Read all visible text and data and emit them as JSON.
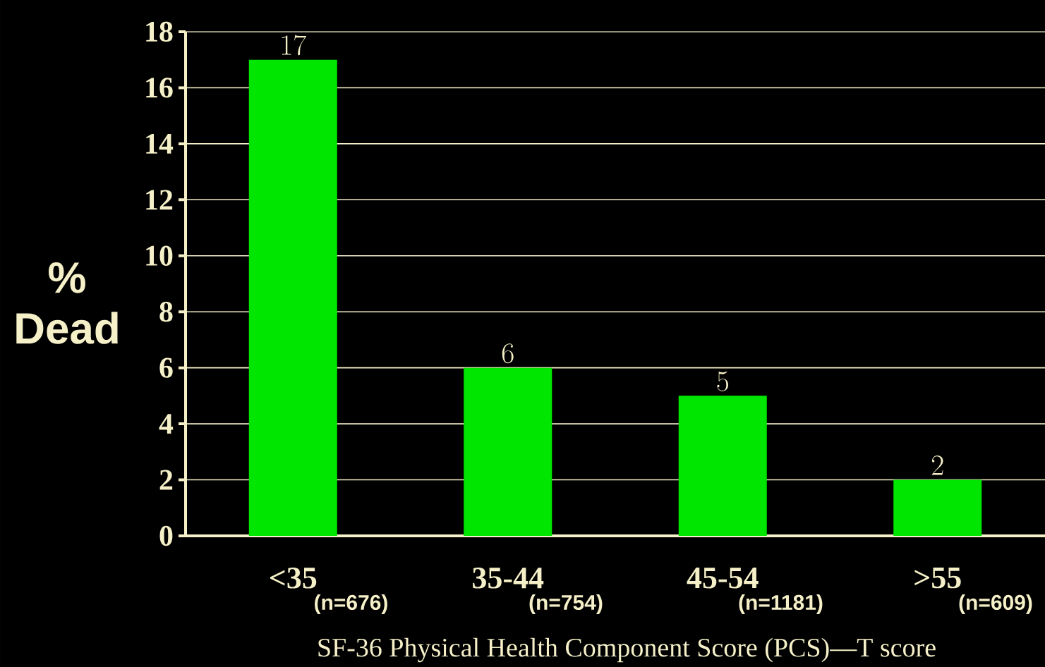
{
  "chart_data": {
    "type": "bar",
    "ylabel": "% Dead",
    "xlabel": "SF-36 Physical Health Component Score (PCS)—T score",
    "categories": [
      "<35",
      "35-44",
      "45-54",
      ">55"
    ],
    "values": [
      17,
      6,
      5,
      2
    ],
    "color": "#00e600",
    "ylim": [
      0,
      18
    ],
    "yticks": [
      0,
      2,
      4,
      6,
      8,
      10,
      12,
      14,
      16,
      18
    ],
    "grid": "y",
    "data_labels": true,
    "annotations": [
      "(n=676)",
      "(n=754)",
      "(n=1181)",
      "(n=609)"
    ]
  }
}
